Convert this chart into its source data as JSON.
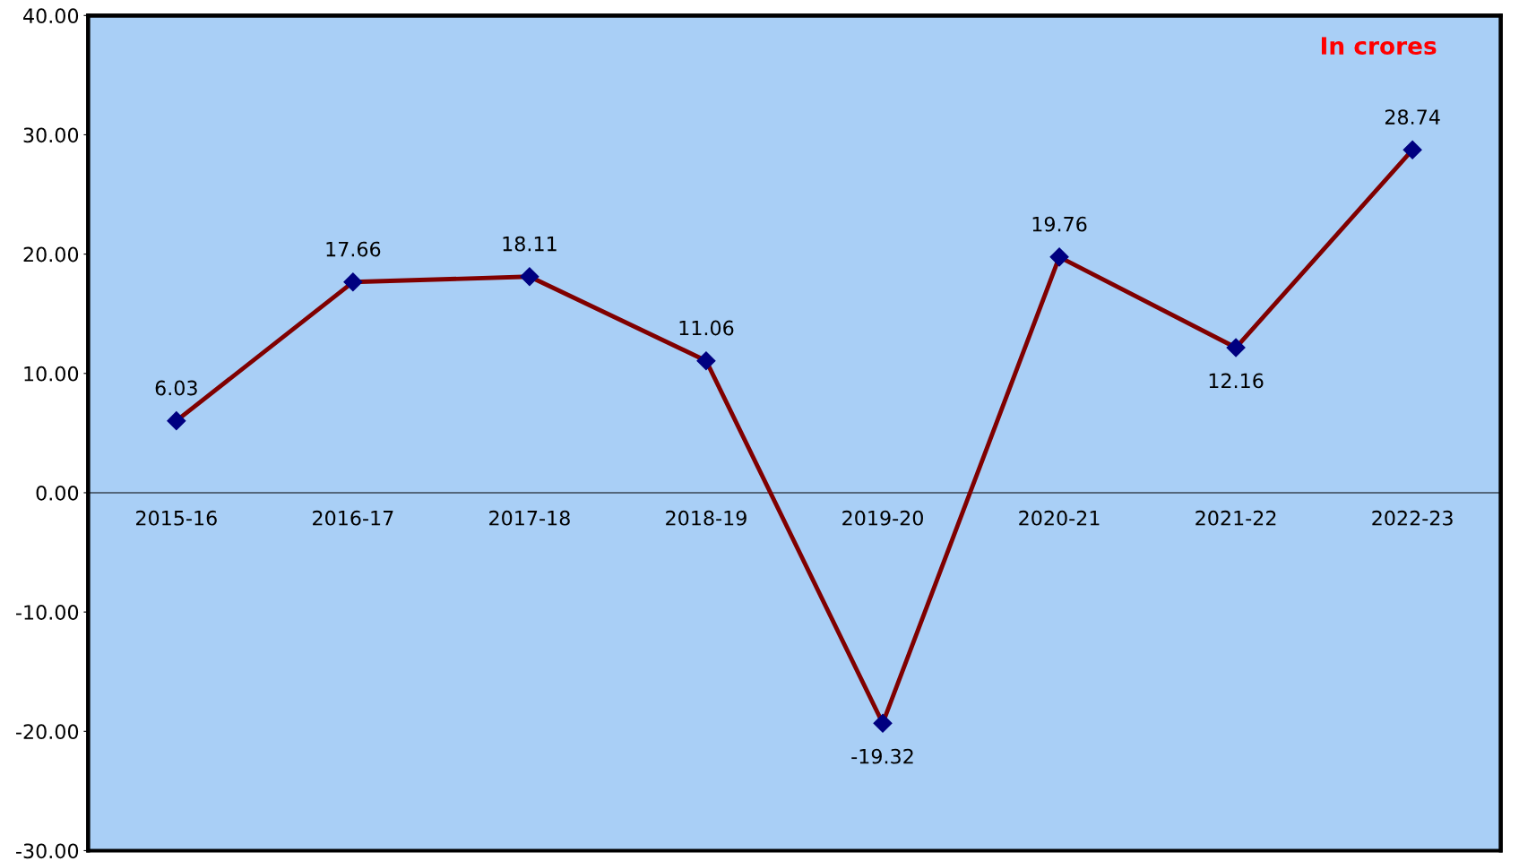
{
  "chart_data": {
    "type": "line",
    "categories": [
      "2015-16",
      "2016-17",
      "2017-18",
      "2018-19",
      "2019-20",
      "2020-21",
      "2021-22",
      "2022-23"
    ],
    "series": [
      {
        "color": "#800000",
        "values": [
          6.03,
          17.66,
          18.11,
          11.06,
          -19.32,
          19.76,
          12.16,
          28.74
        ]
      }
    ],
    "marker": "diamond",
    "line_style": "solid",
    "data_labels": true,
    "grid": false,
    "ylim": [
      -30,
      40
    ],
    "yticks": [
      {
        "value": -30,
        "label": "-30.00"
      },
      {
        "value": -20,
        "label": "-20.00"
      },
      {
        "value": -10,
        "label": "-10.00"
      },
      {
        "value": 0,
        "label": "0.00"
      },
      {
        "value": 10,
        "label": "10.00"
      },
      {
        "value": 20,
        "label": "20.00"
      },
      {
        "value": 30,
        "label": "30.00"
      },
      {
        "value": 40,
        "label": "40.00"
      }
    ],
    "annotations": [
      "In crores"
    ]
  }
}
